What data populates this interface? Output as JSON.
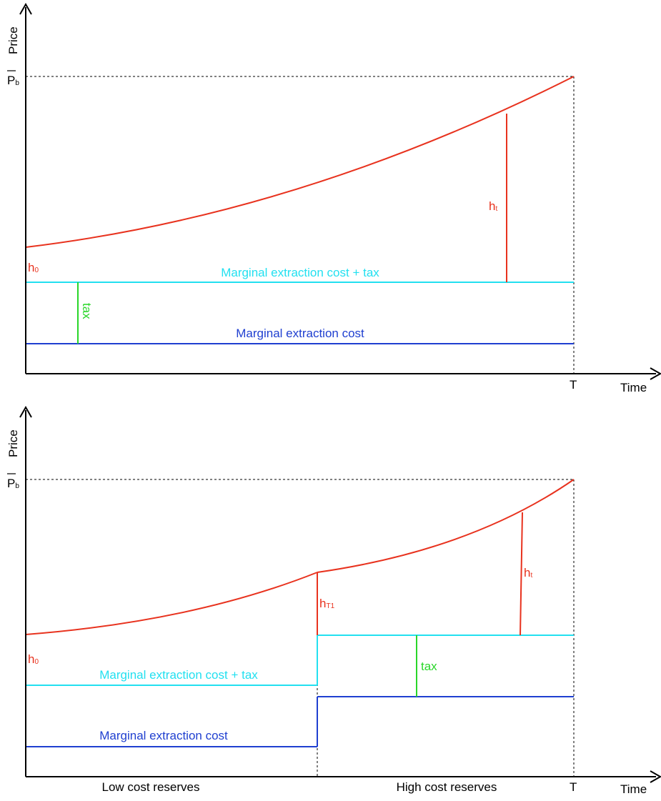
{
  "colors": {
    "price_path": "#e8321e",
    "cost_plus_tax": "#22e0f0",
    "cost": "#1f3fd0",
    "tax": "#29d629",
    "axis": "#000000",
    "reference": "#000000"
  },
  "top_panel": {
    "y_axis_label": "Price",
    "x_axis_label": "Time",
    "price_cap_label": "P",
    "price_cap_sub": "b",
    "end_label": "T",
    "cost_plus_tax_label": "Marginal extraction cost + tax",
    "cost_label": "Marginal extraction cost",
    "tax_label": "tax",
    "h0_label": "h",
    "h0_sub": "0",
    "ht_label": "h",
    "ht_sub": "t"
  },
  "bottom_panel": {
    "y_axis_label": "Price",
    "x_axis_label": "Time",
    "price_cap_label": "P",
    "price_cap_sub": "b",
    "end_label": "T",
    "cost_plus_tax_label": "Marginal extraction cost + tax",
    "cost_label": "Marginal extraction cost",
    "tax_label": "tax",
    "h0_label": "h",
    "h0_sub": "0",
    "hT1_label": "h",
    "hT1_sub": "T1",
    "ht_label": "h",
    "ht_sub": "t",
    "low_cost_label": "Low cost reserves",
    "high_cost_label": "High cost reserves"
  }
}
